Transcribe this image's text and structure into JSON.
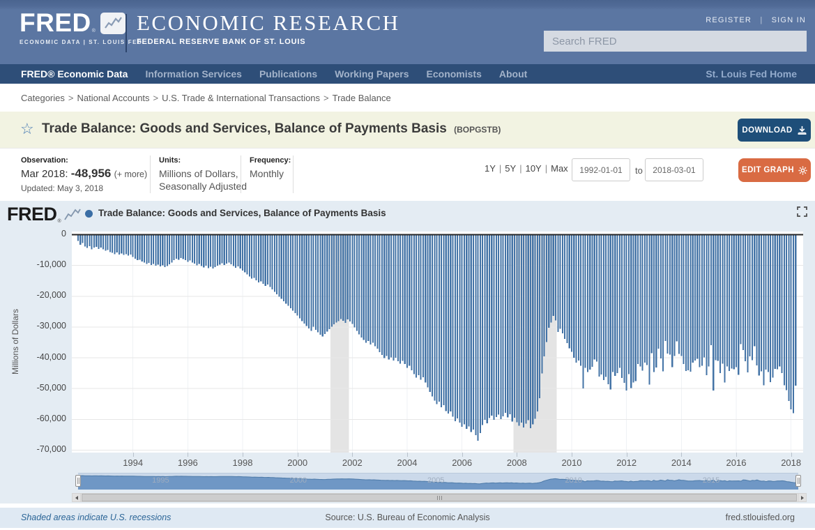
{
  "header": {
    "logo": "FRED",
    "logo_reg": "®",
    "logo_sub": "ECONOMIC DATA  |  ST. LOUIS FED",
    "title": "ECONOMIC RESEARCH",
    "subtitle": "FEDERAL RESERVE BANK OF ST. LOUIS",
    "register": "REGISTER",
    "sign_in": "SIGN IN",
    "search_placeholder": "Search FRED"
  },
  "nav": {
    "items": [
      "FRED® Economic Data",
      "Information Services",
      "Publications",
      "Working Papers",
      "Economists",
      "About"
    ],
    "home": "St. Louis Fed Home"
  },
  "breadcrumb": {
    "items": [
      "Categories",
      "National Accounts",
      "U.S. Trade & International Transactions",
      "Trade Balance"
    ],
    "separator": ">"
  },
  "series_header": {
    "title": "Trade Balance: Goods and Services, Balance of Payments Basis",
    "ticker": "(BOPGSTB)",
    "download_label": "DOWNLOAD"
  },
  "meta": {
    "observation_label": "Observation:",
    "observation_date": "Mar 2018:",
    "observation_value": "-48,956",
    "observation_more": "(+ more)",
    "updated": "Updated: May 3, 2018",
    "units_label": "Units:",
    "units_line1": "Millions of Dollars,",
    "units_line2": "Seasonally Adjusted",
    "frequency_label": "Frequency:",
    "frequency_value": "Monthly"
  },
  "range_controls": {
    "presets": [
      "1Y",
      "5Y",
      "10Y",
      "Max"
    ],
    "from": "1992-01-01",
    "to_label": "to",
    "to": "2018-03-01",
    "edit_label": "EDIT GRAPH"
  },
  "graph": {
    "watermark": "FRED",
    "watermark_reg": "®",
    "legend_label": "Trade Balance: Goods and Services, Balance of Payments Basis"
  },
  "footer": {
    "note": "Shaded areas indicate U.S. recessions",
    "source": "Source: U.S. Bureau of Economic Analysis",
    "site": "fred.stlouisfed.org"
  },
  "colors": {
    "bar": "#4373a6",
    "zero_line": "#262626",
    "recession": "#e4e4e4",
    "gridline": "#e7e7e7",
    "year_gridline": "#eff2f5",
    "nav_fill": "#6f97c5",
    "nav_line": "#4d7aa8",
    "header_blue": "#5b76a2",
    "navbar_blue": "#2e4e78",
    "title_bar_beige": "#f2f3e2",
    "accent_navy": "#1e4e79",
    "accent_orange": "#d96b43",
    "chart_bg": "#e4ecf3"
  },
  "chart_data": {
    "type": "bar",
    "title": "Trade Balance: Goods and Services, Balance of Payments Basis",
    "ylabel": "Millions of Dollars",
    "units": "Millions of Dollars, Seasonally Adjusted",
    "frequency": "Monthly",
    "start": "1992-01",
    "end": "2018-03",
    "ylim": [
      -70000,
      0
    ],
    "yticks": [
      "0",
      "-10,000",
      "-20,000",
      "-30,000",
      "-40,000",
      "-50,000",
      "-60,000",
      "-70,000"
    ],
    "ytick_values": [
      0,
      -10000,
      -20000,
      -30000,
      -40000,
      -50000,
      -60000,
      -70000
    ],
    "xticks": [
      1994,
      1996,
      1998,
      2000,
      2002,
      2004,
      2006,
      2008,
      2010,
      2012,
      2014,
      2016,
      2018
    ],
    "recessions": [
      {
        "start": "2001-04",
        "end": "2001-11"
      },
      {
        "start": "2007-12",
        "end": "2009-06"
      }
    ],
    "navigator_year_labels": [
      1995,
      2000,
      2005,
      2010,
      2015
    ],
    "last_observation": {
      "date": "Mar 2018",
      "value": -48956
    },
    "values": [
      -2000,
      -3300,
      -2700,
      -3900,
      -4300,
      -3700,
      -4800,
      -4200,
      -4000,
      -4600,
      -4200,
      -4700,
      -5200,
      -5000,
      -5600,
      -5900,
      -6300,
      -5800,
      -6500,
      -6100,
      -6600,
      -6300,
      -6800,
      -6500,
      -7200,
      -7800,
      -8300,
      -8100,
      -8700,
      -9000,
      -9500,
      -9200,
      -9800,
      -9500,
      -10100,
      -9700,
      -10300,
      -9900,
      -10500,
      -10200,
      -9600,
      -9000,
      -8300,
      -7800,
      -8100,
      -7600,
      -7900,
      -8300,
      -8800,
      -8400,
      -9000,
      -9400,
      -9900,
      -9500,
      -10200,
      -10600,
      -10100,
      -10800,
      -10400,
      -11000,
      -10500,
      -10100,
      -9700,
      -9300,
      -9800,
      -9400,
      -9000,
      -9600,
      -10200,
      -10700,
      -10300,
      -11000,
      -11600,
      -12200,
      -12900,
      -13600,
      -14300,
      -14000,
      -14800,
      -15500,
      -15100,
      -15900,
      -16600,
      -16200,
      -17000,
      -17800,
      -18600,
      -19300,
      -20100,
      -20800,
      -21600,
      -22400,
      -23100,
      -23900,
      -24600,
      -25400,
      -26200,
      -27100,
      -28000,
      -28800,
      -29600,
      -30400,
      -31200,
      -29800,
      -30900,
      -31700,
      -32400,
      -33000,
      -32200,
      -31400,
      -30600,
      -29800,
      -29100,
      -28500,
      -28000,
      -27400,
      -27900,
      -28600,
      -27500,
      -28200,
      -29000,
      -30100,
      -31200,
      -32300,
      -33400,
      -34200,
      -35100,
      -34500,
      -35600,
      -35000,
      -36200,
      -37000,
      -38100,
      -39000,
      -40000,
      -39400,
      -40500,
      -39800,
      -40800,
      -39900,
      -41000,
      -41800,
      -40900,
      -42000,
      -43200,
      -42500,
      -44000,
      -45200,
      -46400,
      -45600,
      -47000,
      -46200,
      -48000,
      -49500,
      -51000,
      -52500,
      -53800,
      -55000,
      -54200,
      -56000,
      -55300,
      -57200,
      -58000,
      -57300,
      -59000,
      -60500,
      -59600,
      -61000,
      -62300,
      -61500,
      -63000,
      -62200,
      -64000,
      -63200,
      -65000,
      -66800,
      -64300,
      -61800,
      -60000,
      -61200,
      -59500,
      -58700,
      -60100,
      -59200,
      -58400,
      -59800,
      -58900,
      -57800,
      -59300,
      -58200,
      -60600,
      -59400,
      -60800,
      -62000,
      -60900,
      -62500,
      -61300,
      -60200,
      -62800,
      -61500,
      -59700,
      -57300,
      -53000,
      -45000,
      -39500,
      -34800,
      -30200,
      -28500,
      -26300,
      -27800,
      -31500,
      -30500,
      -32000,
      -33800,
      -35200,
      -36900,
      -38000,
      -39900,
      -41500,
      -40800,
      -42500,
      -49900,
      -43200,
      -44500,
      -43800,
      -42900,
      -40500,
      -41200,
      -46000,
      -45300,
      -47200,
      -46100,
      -48500,
      -50200,
      -44500,
      -45800,
      -44900,
      -43200,
      -46500,
      -48100,
      -50500,
      -45200,
      -49800,
      -48000,
      -47500,
      -41900,
      -42800,
      -44100,
      -41500,
      -42300,
      -48600,
      -38500,
      -44500,
      -43100,
      -37000,
      -40200,
      -44300,
      -34500,
      -38600,
      -38900,
      -43000,
      -39300,
      -34600,
      -38700,
      -39300,
      -41900,
      -44200,
      -44000,
      -44400,
      -41500,
      -40800,
      -40300,
      -43000,
      -42500,
      -39800,
      -45600,
      -42700,
      -35900,
      -50600,
      -40700,
      -40900,
      -44900,
      -41800,
      -48000,
      -42800,
      -44200,
      -43400,
      -43700,
      -43000,
      -45500,
      -35500,
      -37400,
      -41100,
      -44700,
      -39500,
      -40700,
      -36200,
      -42400,
      -45700,
      -44300,
      -48800,
      -43800,
      -44500,
      -47800,
      -46400,
      -43500,
      -43600,
      -42800,
      -44900,
      -48900,
      -50400,
      -53900,
      -56700,
      -57900,
      -48956
    ]
  }
}
